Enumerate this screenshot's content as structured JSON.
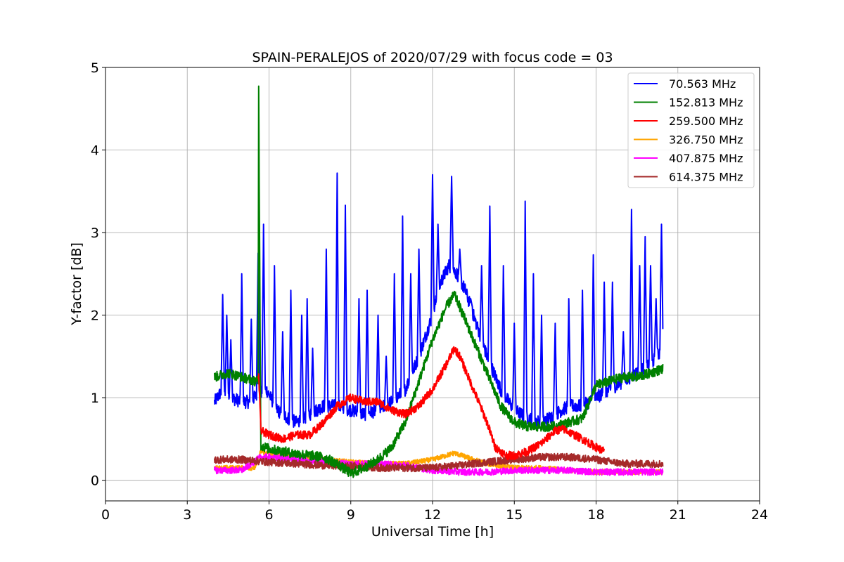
{
  "chart_data": {
    "type": "line",
    "title": "SPAIN-PERALEJOS of 2020/07/29 with focus code = 03",
    "xlabel": "Universal Time [h]",
    "ylabel": "Y-factor [dB]",
    "xlim": [
      0,
      24
    ],
    "ylim": [
      -0.25,
      5
    ],
    "xticks": [
      0,
      3,
      6,
      9,
      12,
      15,
      18,
      21,
      24
    ],
    "yticks": [
      0,
      1,
      2,
      3,
      4,
      5
    ],
    "grid": true,
    "legend_position": "top-right",
    "series": [
      {
        "name": " 70.563 MHz",
        "color": "#0000ff",
        "noise": 0.08,
        "x": [
          4.0,
          4.3,
          4.6,
          5.0,
          5.3,
          5.6,
          5.9,
          6.3,
          6.7,
          7.0,
          7.5,
          8.0,
          8.5,
          9.0,
          9.5,
          10.0,
          10.5,
          11.0,
          11.5,
          12.0,
          12.3,
          12.6,
          12.9,
          13.2,
          13.5,
          14.0,
          14.5,
          15.0,
          15.5,
          16.0,
          16.5,
          17.0,
          17.5,
          18.0,
          18.5,
          19.0,
          19.5,
          20.0,
          20.45
        ],
        "y": [
          0.95,
          1.1,
          1.0,
          0.95,
          0.95,
          1.05,
          1.1,
          0.85,
          0.75,
          0.7,
          0.8,
          0.9,
          0.9,
          0.85,
          0.8,
          0.85,
          0.95,
          1.1,
          1.5,
          2.0,
          2.4,
          2.6,
          2.5,
          2.3,
          2.0,
          1.5,
          1.1,
          0.85,
          0.75,
          0.7,
          0.8,
          0.9,
          0.9,
          1.0,
          1.1,
          1.2,
          1.3,
          1.4,
          1.6
        ],
        "spikes": [
          [
            4.3,
            2.25
          ],
          [
            4.45,
            2.0
          ],
          [
            4.6,
            1.7
          ],
          [
            5.0,
            2.5
          ],
          [
            5.35,
            1.95
          ],
          [
            5.6,
            2.75
          ],
          [
            5.8,
            3.1
          ],
          [
            6.2,
            2.6
          ],
          [
            6.5,
            1.8
          ],
          [
            6.8,
            2.3
          ],
          [
            7.2,
            2.0
          ],
          [
            7.4,
            2.2
          ],
          [
            7.6,
            1.6
          ],
          [
            8.1,
            2.8
          ],
          [
            8.5,
            3.72
          ],
          [
            8.8,
            3.33
          ],
          [
            9.3,
            2.2
          ],
          [
            9.6,
            2.3
          ],
          [
            10.0,
            2.0
          ],
          [
            10.3,
            1.5
          ],
          [
            10.6,
            2.5
          ],
          [
            10.9,
            3.2
          ],
          [
            11.2,
            2.5
          ],
          [
            11.5,
            2.8
          ],
          [
            12.0,
            3.7
          ],
          [
            12.2,
            3.1
          ],
          [
            12.7,
            3.68
          ],
          [
            13.0,
            2.8
          ],
          [
            13.4,
            2.2
          ],
          [
            13.8,
            2.6
          ],
          [
            14.1,
            3.32
          ],
          [
            14.6,
            2.6
          ],
          [
            15.0,
            1.9
          ],
          [
            15.4,
            3.38
          ],
          [
            15.7,
            2.5
          ],
          [
            16.0,
            2.0
          ],
          [
            16.5,
            1.9
          ],
          [
            17.0,
            2.2
          ],
          [
            17.5,
            2.3
          ],
          [
            17.9,
            2.73
          ],
          [
            18.3,
            2.4
          ],
          [
            18.6,
            2.4
          ],
          [
            19.0,
            1.8
          ],
          [
            19.3,
            3.28
          ],
          [
            19.6,
            2.6
          ],
          [
            19.8,
            2.95
          ],
          [
            20.0,
            2.6
          ],
          [
            20.2,
            2.2
          ],
          [
            20.4,
            3.1
          ]
        ]
      },
      {
        "name": "152.813 MHz",
        "color": "#008000",
        "noise": 0.06,
        "x": [
          4.0,
          4.5,
          5.0,
          5.5,
          5.6,
          5.62,
          5.7,
          6.0,
          6.5,
          7.0,
          7.5,
          8.0,
          8.5,
          9.0,
          9.5,
          10.0,
          10.5,
          11.0,
          11.5,
          12.0,
          12.5,
          12.8,
          13.0,
          13.5,
          14.0,
          14.5,
          15.0,
          15.5,
          16.0,
          16.5,
          17.0,
          17.5,
          18.0,
          18.5,
          19.0,
          19.5,
          20.0,
          20.45
        ],
        "y": [
          1.25,
          1.3,
          1.25,
          1.2,
          1.2,
          4.75,
          0.42,
          0.38,
          0.35,
          0.32,
          0.3,
          0.28,
          0.2,
          0.08,
          0.15,
          0.25,
          0.4,
          0.7,
          1.2,
          1.7,
          2.1,
          2.25,
          2.1,
          1.7,
          1.3,
          0.9,
          0.7,
          0.65,
          0.65,
          0.65,
          0.7,
          0.75,
          1.15,
          1.2,
          1.25,
          1.25,
          1.3,
          1.35
        ],
        "spikes": []
      },
      {
        "name": "259.500 MHz",
        "color": "#ff0000",
        "noise": 0.05,
        "x": [
          5.6,
          5.62,
          5.7,
          6.0,
          6.5,
          7.0,
          7.5,
          8.0,
          8.5,
          9.0,
          9.5,
          10.0,
          10.5,
          11.0,
          11.5,
          12.0,
          12.5,
          12.8,
          13.0,
          13.5,
          14.0,
          14.3,
          14.7,
          15.0,
          15.5,
          16.0,
          16.5,
          16.8,
          17.2,
          17.6,
          18.0,
          18.3
        ],
        "y": [
          1.2,
          1.3,
          0.6,
          0.55,
          0.5,
          0.55,
          0.55,
          0.7,
          0.9,
          1.0,
          0.95,
          0.95,
          0.85,
          0.8,
          0.9,
          1.1,
          1.4,
          1.6,
          1.5,
          1.1,
          0.7,
          0.4,
          0.3,
          0.3,
          0.35,
          0.45,
          0.6,
          0.62,
          0.55,
          0.48,
          0.4,
          0.35
        ],
        "spikes": []
      },
      {
        "name": "326.750 MHz",
        "color": "#ffa500",
        "noise": 0.03,
        "x": [
          4.0,
          5.5,
          5.7,
          6.0,
          7.0,
          8.0,
          9.0,
          10.0,
          11.0,
          12.0,
          12.8,
          13.5,
          14.0,
          15.0,
          16.0,
          17.0,
          18.0,
          19.0,
          20.45
        ],
        "y": [
          0.15,
          0.15,
          0.35,
          0.32,
          0.3,
          0.25,
          0.22,
          0.2,
          0.2,
          0.25,
          0.33,
          0.25,
          0.2,
          0.15,
          0.15,
          0.12,
          0.1,
          0.1,
          0.1
        ],
        "spikes": []
      },
      {
        "name": "407.875 MHz",
        "color": "#ff00ff",
        "noise": 0.04,
        "x": [
          4.0,
          5.0,
          5.7,
          6.0,
          7.0,
          8.0,
          9.0,
          10.0,
          11.0,
          12.0,
          13.0,
          14.0,
          15.0,
          16.0,
          17.0,
          18.0,
          19.0,
          20.45
        ],
        "y": [
          0.12,
          0.12,
          0.28,
          0.28,
          0.25,
          0.22,
          0.2,
          0.2,
          0.18,
          0.12,
          0.1,
          0.1,
          0.12,
          0.12,
          0.12,
          0.1,
          0.1,
          0.1
        ],
        "spikes": []
      },
      {
        "name": "614.375 MHz",
        "color": "#a52a2a",
        "noise": 0.045,
        "x": [
          4.0,
          5.0,
          6.0,
          7.0,
          8.0,
          9.0,
          10.0,
          11.0,
          12.0,
          13.0,
          14.0,
          15.0,
          16.0,
          17.0,
          18.0,
          19.0,
          20.0,
          20.45
        ],
        "y": [
          0.25,
          0.25,
          0.22,
          0.2,
          0.18,
          0.17,
          0.15,
          0.15,
          0.15,
          0.18,
          0.22,
          0.25,
          0.28,
          0.28,
          0.25,
          0.2,
          0.2,
          0.2
        ],
        "spikes": []
      }
    ]
  }
}
